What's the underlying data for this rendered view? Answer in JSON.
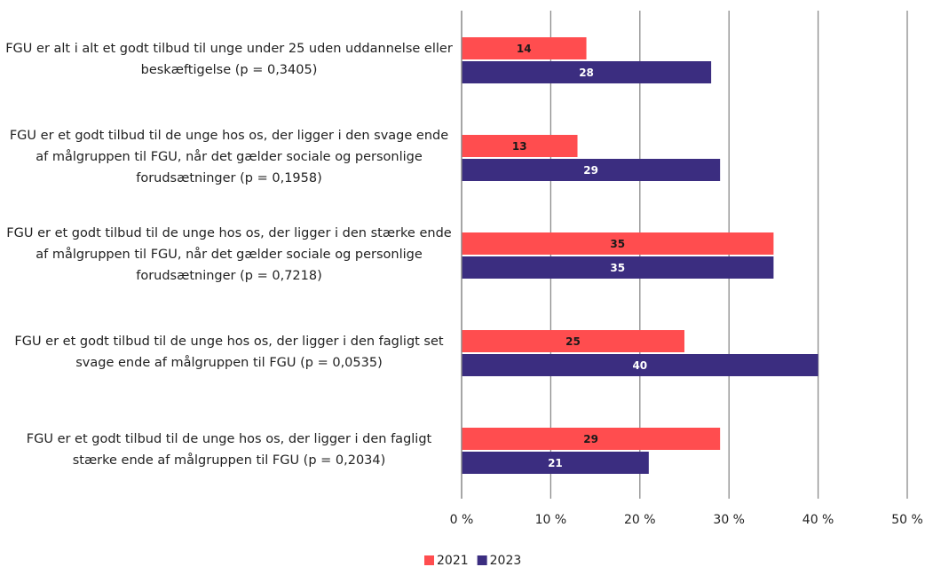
{
  "chart_data": {
    "type": "bar",
    "orientation": "horizontal",
    "categories": [
      "FGU er alt i alt et godt tilbud til unge under 25 uden uddannelse eller beskæftigelse (p = 0,3405)",
      "FGU er et godt tilbud til de unge hos os, der ligger i den svage ende af målgruppen til FGU, når det gælder sociale og personlige forudsætninger (p = 0,1958)",
      "FGU er et godt tilbud til de unge hos os, der ligger i den stærke ende af målgruppen til FGU, når det gælder sociale og personlige forudsætninger (p = 0,7218)",
      "FGU er et godt tilbud til de unge hos os, der ligger i den fagligt set svage ende af målgruppen til FGU (p = 0,0535)",
      "FGU er et godt tilbud til de unge hos os, der ligger i den fagligt stærke ende af målgruppen til FGU (p = 0,2034)"
    ],
    "series": [
      {
        "name": "2021",
        "color": "#ff4d4f",
        "label_color": "#1a1a1a",
        "values": [
          14,
          13,
          35,
          25,
          29
        ]
      },
      {
        "name": "2023",
        "color": "#3b2d80",
        "label_color": "#ffffff",
        "values": [
          28,
          29,
          35,
          40,
          21
        ]
      }
    ],
    "xlim": [
      0,
      50
    ],
    "xticks": [
      {
        "value": 0,
        "label": "0 %"
      },
      {
        "value": 10,
        "label": "10 %"
      },
      {
        "value": 20,
        "label": "20 %"
      },
      {
        "value": 30,
        "label": "30 %"
      },
      {
        "value": 40,
        "label": "40 %"
      },
      {
        "value": 50,
        "label": "50 %"
      }
    ],
    "grid": true,
    "legend": "bottom"
  }
}
